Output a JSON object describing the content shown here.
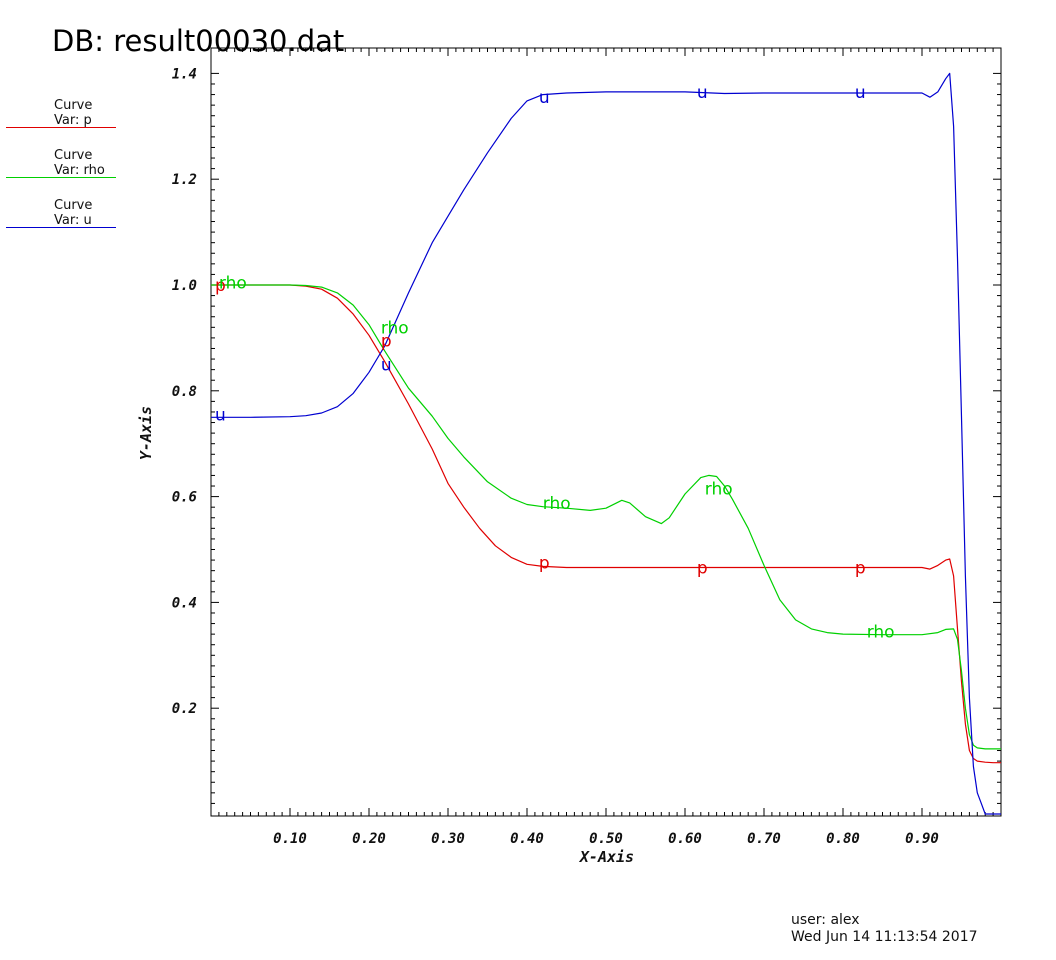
{
  "header": {
    "db_title": "DB: result00030.dat"
  },
  "legend": [
    {
      "line1": "Curve",
      "line2": "Var: p",
      "color": "#e00000"
    },
    {
      "line1": "Curve",
      "line2": "Var: rho",
      "color": "#00d000"
    },
    {
      "line1": "Curve",
      "line2": "Var: u",
      "color": "#0000d0"
    }
  ],
  "footer": {
    "user": "user: alex",
    "date": "Wed Jun 14 11:13:54 2017"
  },
  "chart_data": {
    "type": "line",
    "title": "DB: result00030.dat",
    "xlabel": "X-Axis",
    "ylabel": "Y-Axis",
    "xlim": [
      0.0,
      1.0
    ],
    "ylim": [
      0.0,
      1.4
    ],
    "x_ticks": [
      0.1,
      0.2,
      0.3,
      0.4,
      0.5,
      0.6,
      0.7,
      0.8,
      0.9
    ],
    "x_tick_labels": [
      "0.10",
      "0.20",
      "0.30",
      "0.40",
      "0.50",
      "0.60",
      "0.70",
      "0.80",
      "0.90"
    ],
    "y_ticks": [
      0.2,
      0.4,
      0.6,
      0.8,
      1.0,
      1.2,
      1.4
    ],
    "y_tick_labels": [
      "0.2",
      "0.4",
      "0.6",
      "0.8",
      "1.0",
      "1.2",
      "1.4"
    ],
    "grid": false,
    "legend_position": "left",
    "series": [
      {
        "name": "Var: p",
        "label": "p",
        "color": "#e00000",
        "x": [
          0,
          0.05,
          0.1,
          0.12,
          0.14,
          0.16,
          0.18,
          0.2,
          0.22,
          0.25,
          0.28,
          0.3,
          0.32,
          0.34,
          0.36,
          0.38,
          0.4,
          0.42,
          0.45,
          0.5,
          0.6,
          0.7,
          0.8,
          0.9,
          0.91,
          0.92,
          0.93,
          0.935,
          0.94,
          0.945,
          0.95,
          0.955,
          0.96,
          0.965,
          0.97,
          0.98,
          0.99,
          1.0
        ],
        "y": [
          1.0,
          1.0,
          1.0,
          0.998,
          0.992,
          0.975,
          0.945,
          0.905,
          0.855,
          0.775,
          0.69,
          0.625,
          0.58,
          0.54,
          0.507,
          0.485,
          0.472,
          0.468,
          0.466,
          0.466,
          0.466,
          0.466,
          0.466,
          0.466,
          0.463,
          0.47,
          0.48,
          0.482,
          0.45,
          0.35,
          0.25,
          0.17,
          0.12,
          0.105,
          0.1,
          0.098,
          0.097,
          0.097
        ],
        "annotations": [
          {
            "x": 0.005,
            "y": 1.0
          },
          {
            "x": 0.215,
            "y": 0.895
          },
          {
            "x": 0.415,
            "y": 0.475
          },
          {
            "x": 0.615,
            "y": 0.466
          },
          {
            "x": 0.815,
            "y": 0.466
          }
        ]
      },
      {
        "name": "Var: rho",
        "label": "rho",
        "color": "#00d000",
        "x": [
          0,
          0.05,
          0.1,
          0.12,
          0.14,
          0.16,
          0.18,
          0.2,
          0.22,
          0.25,
          0.28,
          0.3,
          0.32,
          0.35,
          0.38,
          0.4,
          0.42,
          0.45,
          0.48,
          0.5,
          0.52,
          0.53,
          0.55,
          0.57,
          0.58,
          0.6,
          0.62,
          0.63,
          0.64,
          0.65,
          0.66,
          0.68,
          0.7,
          0.72,
          0.74,
          0.76,
          0.78,
          0.8,
          0.85,
          0.9,
          0.92,
          0.93,
          0.94,
          0.945,
          0.95,
          0.955,
          0.96,
          0.965,
          0.97,
          0.98,
          0.99,
          1.0
        ],
        "y": [
          1.0,
          1.0,
          1.0,
          0.999,
          0.996,
          0.985,
          0.962,
          0.925,
          0.875,
          0.805,
          0.752,
          0.71,
          0.675,
          0.628,
          0.597,
          0.585,
          0.581,
          0.578,
          0.574,
          0.578,
          0.593,
          0.588,
          0.562,
          0.549,
          0.56,
          0.605,
          0.636,
          0.64,
          0.638,
          0.62,
          0.595,
          0.54,
          0.47,
          0.405,
          0.367,
          0.35,
          0.343,
          0.34,
          0.339,
          0.339,
          0.343,
          0.349,
          0.35,
          0.33,
          0.27,
          0.2,
          0.15,
          0.13,
          0.125,
          0.123,
          0.123,
          0.123
        ],
        "annotations": [
          {
            "x": 0.01,
            "y": 1.005
          },
          {
            "x": 0.215,
            "y": 0.92
          },
          {
            "x": 0.42,
            "y": 0.588
          },
          {
            "x": 0.625,
            "y": 0.615
          },
          {
            "x": 0.83,
            "y": 0.345
          }
        ]
      },
      {
        "name": "Var: u",
        "label": "u",
        "color": "#0000d0",
        "x": [
          0,
          0.05,
          0.1,
          0.12,
          0.14,
          0.16,
          0.18,
          0.2,
          0.22,
          0.25,
          0.28,
          0.3,
          0.32,
          0.35,
          0.38,
          0.4,
          0.42,
          0.45,
          0.5,
          0.55,
          0.6,
          0.65,
          0.7,
          0.75,
          0.8,
          0.85,
          0.88,
          0.9,
          0.91,
          0.92,
          0.93,
          0.935,
          0.94,
          0.945,
          0.95,
          0.955,
          0.96,
          0.965,
          0.97,
          0.975,
          0.98,
          0.99,
          1.0
        ],
        "y": [
          0.75,
          0.75,
          0.751,
          0.753,
          0.758,
          0.77,
          0.795,
          0.835,
          0.885,
          0.985,
          1.08,
          1.13,
          1.18,
          1.25,
          1.315,
          1.348,
          1.36,
          1.363,
          1.365,
          1.365,
          1.365,
          1.362,
          1.363,
          1.363,
          1.363,
          1.363,
          1.363,
          1.363,
          1.355,
          1.365,
          1.39,
          1.4,
          1.3,
          1.05,
          0.75,
          0.45,
          0.22,
          0.09,
          0.04,
          0.02,
          0.0,
          0.0,
          0.0
        ],
        "annotations": [
          {
            "x": 0.005,
            "y": 0.755
          },
          {
            "x": 0.215,
            "y": 0.85
          },
          {
            "x": 0.415,
            "y": 1.355
          },
          {
            "x": 0.615,
            "y": 1.365
          },
          {
            "x": 0.815,
            "y": 1.365
          }
        ]
      }
    ]
  }
}
